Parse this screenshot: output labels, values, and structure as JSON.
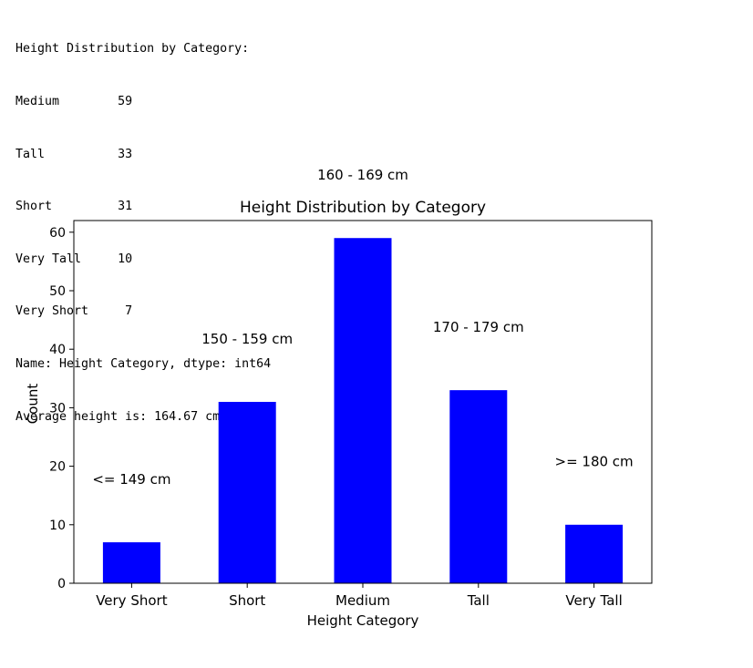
{
  "console": {
    "lines": [
      "Height Distribution by Category:",
      "Medium        59",
      "Tall          33",
      "Short         31",
      "Very Tall     10",
      "Very Short     7",
      "Name: Height Category, dtype: int64",
      "Average height is: 164.67 cm"
    ]
  },
  "chart_data": {
    "type": "bar",
    "title": "Height Distribution by Category",
    "xlabel": "Height Category",
    "ylabel": "Count",
    "categories": [
      "Very Short",
      "Short",
      "Medium",
      "Tall",
      "Very Tall"
    ],
    "values": [
      7,
      31,
      59,
      33,
      10
    ],
    "bar_color": "#0000ff",
    "ylim": [
      0,
      62
    ],
    "yticks": [
      0,
      10,
      20,
      30,
      40,
      50,
      60
    ],
    "annotations": [
      {
        "text": "<= 149 cm",
        "category": "Very Short",
        "y": 17
      },
      {
        "text": "150 - 159 cm",
        "category": "Short",
        "y": 41
      },
      {
        "text": "160 - 169 cm",
        "category": "Medium",
        "y": 69
      },
      {
        "text": "170 - 179 cm",
        "category": "Tall",
        "y": 43
      },
      {
        "text": ">= 180 cm",
        "category": "Very Tall",
        "y": 20
      }
    ],
    "grid": false
  }
}
